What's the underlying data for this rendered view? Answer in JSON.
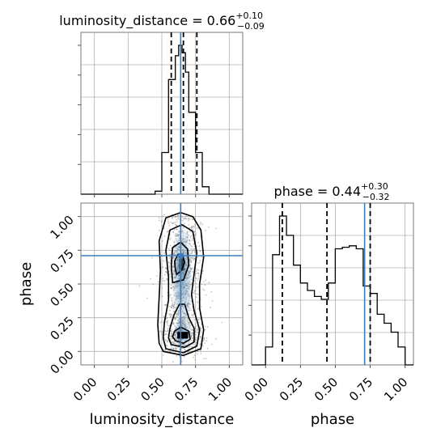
{
  "chart_data": {
    "type": "corner",
    "parameters": [
      "luminosity_distance",
      "phase"
    ],
    "truth": {
      "luminosity_distance": 0.64,
      "phase": 0.71
    },
    "colors": {
      "truth": "#3b7dbf",
      "hist": "#000000",
      "density": "#2d6fa6",
      "samples": "#7f7f7f",
      "grid": "#b0b0b0"
    },
    "grid": true,
    "ticks": {
      "luminosity_distance": [
        "0.00",
        "0.25",
        "0.50",
        "0.75",
        "1.00"
      ],
      "phase": [
        "0.00",
        "0.25",
        "0.50",
        "0.75",
        "1.00"
      ]
    },
    "xlim": {
      "luminosity_distance": [
        -0.1,
        1.1
      ],
      "phase": [
        -0.1,
        1.06
      ]
    },
    "ylim_2d": [
      -0.1,
      1.1
    ],
    "marginals": [
      {
        "param": "luminosity_distance",
        "title_main": "luminosity_distance = 0.66",
        "title_plus": "+0.10",
        "title_minus": "−0.09",
        "quantiles": [
          0.57,
          0.66,
          0.76
        ],
        "bin_edges": [
          0.45,
          0.5,
          0.55,
          0.6,
          0.625,
          0.65,
          0.675,
          0.7,
          0.75,
          0.8,
          0.85,
          0.9
        ],
        "counts": [
          0.02,
          0.28,
          0.77,
          0.93,
          1.0,
          0.95,
          0.82,
          0.55,
          0.28,
          0.05,
          0.0
        ]
      },
      {
        "param": "phase",
        "title_main": "phase = 0.44",
        "title_plus": "+0.30",
        "title_minus": "−0.32",
        "quantiles": [
          0.12,
          0.44,
          0.75
        ],
        "bin_edges": [
          -0.05,
          0.0,
          0.05,
          0.1,
          0.15,
          0.2,
          0.25,
          0.3,
          0.35,
          0.4,
          0.45,
          0.5,
          0.55,
          0.6,
          0.65,
          0.7,
          0.75,
          0.8,
          0.85,
          0.9,
          0.95,
          1.0,
          1.05
        ],
        "counts": [
          0.0,
          0.12,
          0.74,
          1.0,
          0.87,
          0.67,
          0.55,
          0.5,
          0.46,
          0.44,
          0.55,
          0.78,
          0.79,
          0.8,
          0.78,
          0.53,
          0.48,
          0.34,
          0.28,
          0.22,
          0.12,
          0.0
        ]
      }
    ],
    "joint": {
      "x": "luminosity_distance",
      "y": "phase",
      "contours": [
        [
          [
            0.61,
            0.57
          ],
          [
            0.645,
            0.6
          ],
          [
            0.67,
            0.66
          ],
          [
            0.655,
            0.71
          ],
          [
            0.62,
            0.72
          ],
          [
            0.595,
            0.67
          ],
          [
            0.6,
            0.61
          ]
        ],
        [
          [
            0.6,
            0.08
          ],
          [
            0.66,
            0.06
          ],
          [
            0.71,
            0.09
          ],
          [
            0.7,
            0.15
          ],
          [
            0.64,
            0.18
          ],
          [
            0.595,
            0.15
          ],
          [
            0.58,
            0.11
          ]
        ],
        [
          [
            0.58,
            0.51
          ],
          [
            0.66,
            0.53
          ],
          [
            0.7,
            0.64
          ],
          [
            0.69,
            0.76
          ],
          [
            0.64,
            0.81
          ],
          [
            0.58,
            0.77
          ],
          [
            0.57,
            0.64
          ]
        ],
        [
          [
            0.57,
            0.05
          ],
          [
            0.67,
            0.03
          ],
          [
            0.74,
            0.07
          ],
          [
            0.74,
            0.17
          ],
          [
            0.7,
            0.25
          ],
          [
            0.67,
            0.35
          ],
          [
            0.63,
            0.35
          ],
          [
            0.59,
            0.27
          ],
          [
            0.56,
            0.17
          ],
          [
            0.55,
            0.1
          ]
        ],
        [
          [
            0.53,
            0.02
          ],
          [
            0.66,
            -0.01
          ],
          [
            0.76,
            0.04
          ],
          [
            0.78,
            0.16
          ],
          [
            0.74,
            0.3
          ],
          [
            0.72,
            0.42
          ],
          [
            0.74,
            0.58
          ],
          [
            0.76,
            0.73
          ],
          [
            0.73,
            0.89
          ],
          [
            0.65,
            0.94
          ],
          [
            0.56,
            0.9
          ],
          [
            0.53,
            0.75
          ],
          [
            0.55,
            0.55
          ],
          [
            0.55,
            0.38
          ],
          [
            0.52,
            0.22
          ],
          [
            0.51,
            0.1
          ]
        ],
        [
          [
            0.51,
            0.0
          ],
          [
            0.66,
            -0.03
          ],
          [
            0.79,
            0.02
          ],
          [
            0.81,
            0.16
          ],
          [
            0.78,
            0.32
          ],
          [
            0.78,
            0.5
          ],
          [
            0.81,
            0.7
          ],
          [
            0.79,
            0.9
          ],
          [
            0.73,
            1.0
          ],
          [
            0.64,
            1.03
          ],
          [
            0.53,
            0.99
          ],
          [
            0.48,
            0.82
          ],
          [
            0.49,
            0.6
          ],
          [
            0.48,
            0.4
          ],
          [
            0.47,
            0.2
          ],
          [
            0.48,
            0.06
          ]
        ]
      ]
    },
    "xlabels": [
      "luminosity_distance",
      "phase"
    ],
    "ylabel": "phase"
  }
}
